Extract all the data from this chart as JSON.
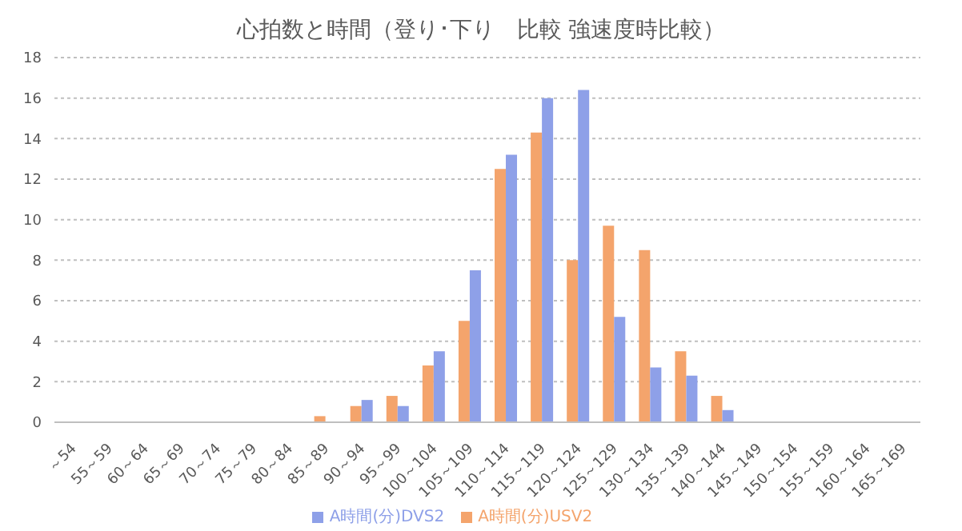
{
  "chart_data": {
    "type": "bar",
    "title": "心拍数と時間（登り･下り　比較 強速度時比較）",
    "categories": [
      "～54",
      "55～59",
      "60～64",
      "65～69",
      "70～74",
      "75～79",
      "80～84",
      "85～89",
      "90～94",
      "95～99",
      "100～104",
      "105～109",
      "110～114",
      "115～119",
      "120～124",
      "125～129",
      "130～134",
      "135～139",
      "140～144",
      "145～149",
      "150～154",
      "155～159",
      "160～164",
      "165～169"
    ],
    "series": [
      {
        "name": "A時間(分)USV2",
        "color": "#f4a46c",
        "values": [
          0,
          0,
          0,
          0,
          0,
          0,
          0,
          0.3,
          0.8,
          1.3,
          2.8,
          5.0,
          12.5,
          14.3,
          8.0,
          9.7,
          8.5,
          3.5,
          1.3,
          0,
          0,
          0,
          0,
          0
        ]
      },
      {
        "name": "A時間(分)DVS2",
        "color": "#8ea0e8",
        "values": [
          0,
          0,
          0,
          0,
          0,
          0,
          0,
          0,
          1.1,
          0.8,
          3.5,
          7.5,
          13.2,
          16.0,
          16.4,
          5.2,
          2.7,
          2.3,
          0.6,
          0,
          0,
          0,
          0,
          0
        ]
      }
    ],
    "ylim": [
      0,
      18
    ],
    "yticks": [
      0,
      2,
      4,
      6,
      8,
      10,
      12,
      14,
      16,
      18
    ],
    "grid": "y",
    "legend": "bottom"
  }
}
